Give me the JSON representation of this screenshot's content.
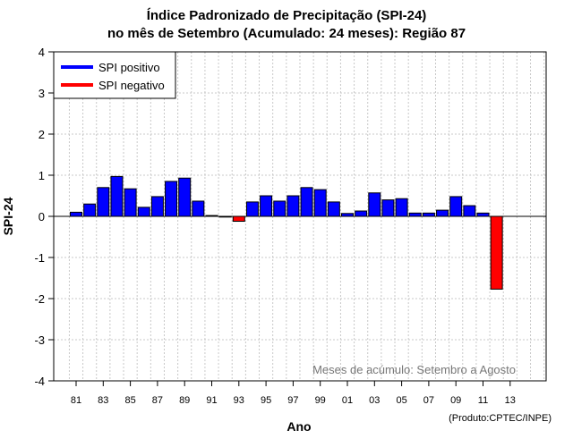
{
  "title_line1": "Índice Padronizado de Precipitação (SPI-24)",
  "title_line2": "no mês de Setembro (Acumulado: 24 meses): Região 87",
  "product_note": "(Produto:CPTEC/INPE)",
  "colors": {
    "positive": "#0000ff",
    "negative": "#ff0000",
    "bar_stroke": "#000000",
    "grid": "#c8c8c8"
  },
  "chart_data": {
    "type": "bar",
    "title": "Índice Padronizado de Precipitação (SPI-24) no mês de Setembro (Acumulado: 24 meses): Região 87",
    "xlabel": "Ano",
    "ylabel": "SPI-24",
    "ylim": [
      -4,
      4
    ],
    "yticks": [
      -4,
      -3,
      -2,
      -1,
      0,
      1,
      2,
      3,
      4
    ],
    "xtick_labels": [
      "81",
      "83",
      "85",
      "87",
      "89",
      "91",
      "93",
      "95",
      "97",
      "99",
      "01",
      "03",
      "05",
      "07",
      "09",
      "11",
      "13"
    ],
    "categories": [
      "1981",
      "1982",
      "1983",
      "1984",
      "1985",
      "1986",
      "1987",
      "1988",
      "1989",
      "1990",
      "1991",
      "1992",
      "1993",
      "1994",
      "1995",
      "1996",
      "1997",
      "1998",
      "1999",
      "2000",
      "2001",
      "2002",
      "2003",
      "2004",
      "2005",
      "2006",
      "2007",
      "2008",
      "2009",
      "2010",
      "2011",
      "2012"
    ],
    "values": [
      0.1,
      0.3,
      0.7,
      0.97,
      0.67,
      0.22,
      0.48,
      0.85,
      0.93,
      0.37,
      0.02,
      0.0,
      -0.12,
      0.35,
      0.5,
      0.37,
      0.5,
      0.7,
      0.65,
      0.35,
      0.07,
      0.13,
      0.57,
      0.4,
      0.43,
      0.08,
      0.08,
      0.15,
      0.48,
      0.26,
      0.08,
      -1.77
    ],
    "legend": [
      {
        "label": "SPI positivo",
        "color": "#0000ff"
      },
      {
        "label": "SPI negativo",
        "color": "#ff0000"
      }
    ],
    "legend_position": "top-left",
    "annotation": "Meses de acúmulo: Setembro a Agosto",
    "grid": true
  }
}
